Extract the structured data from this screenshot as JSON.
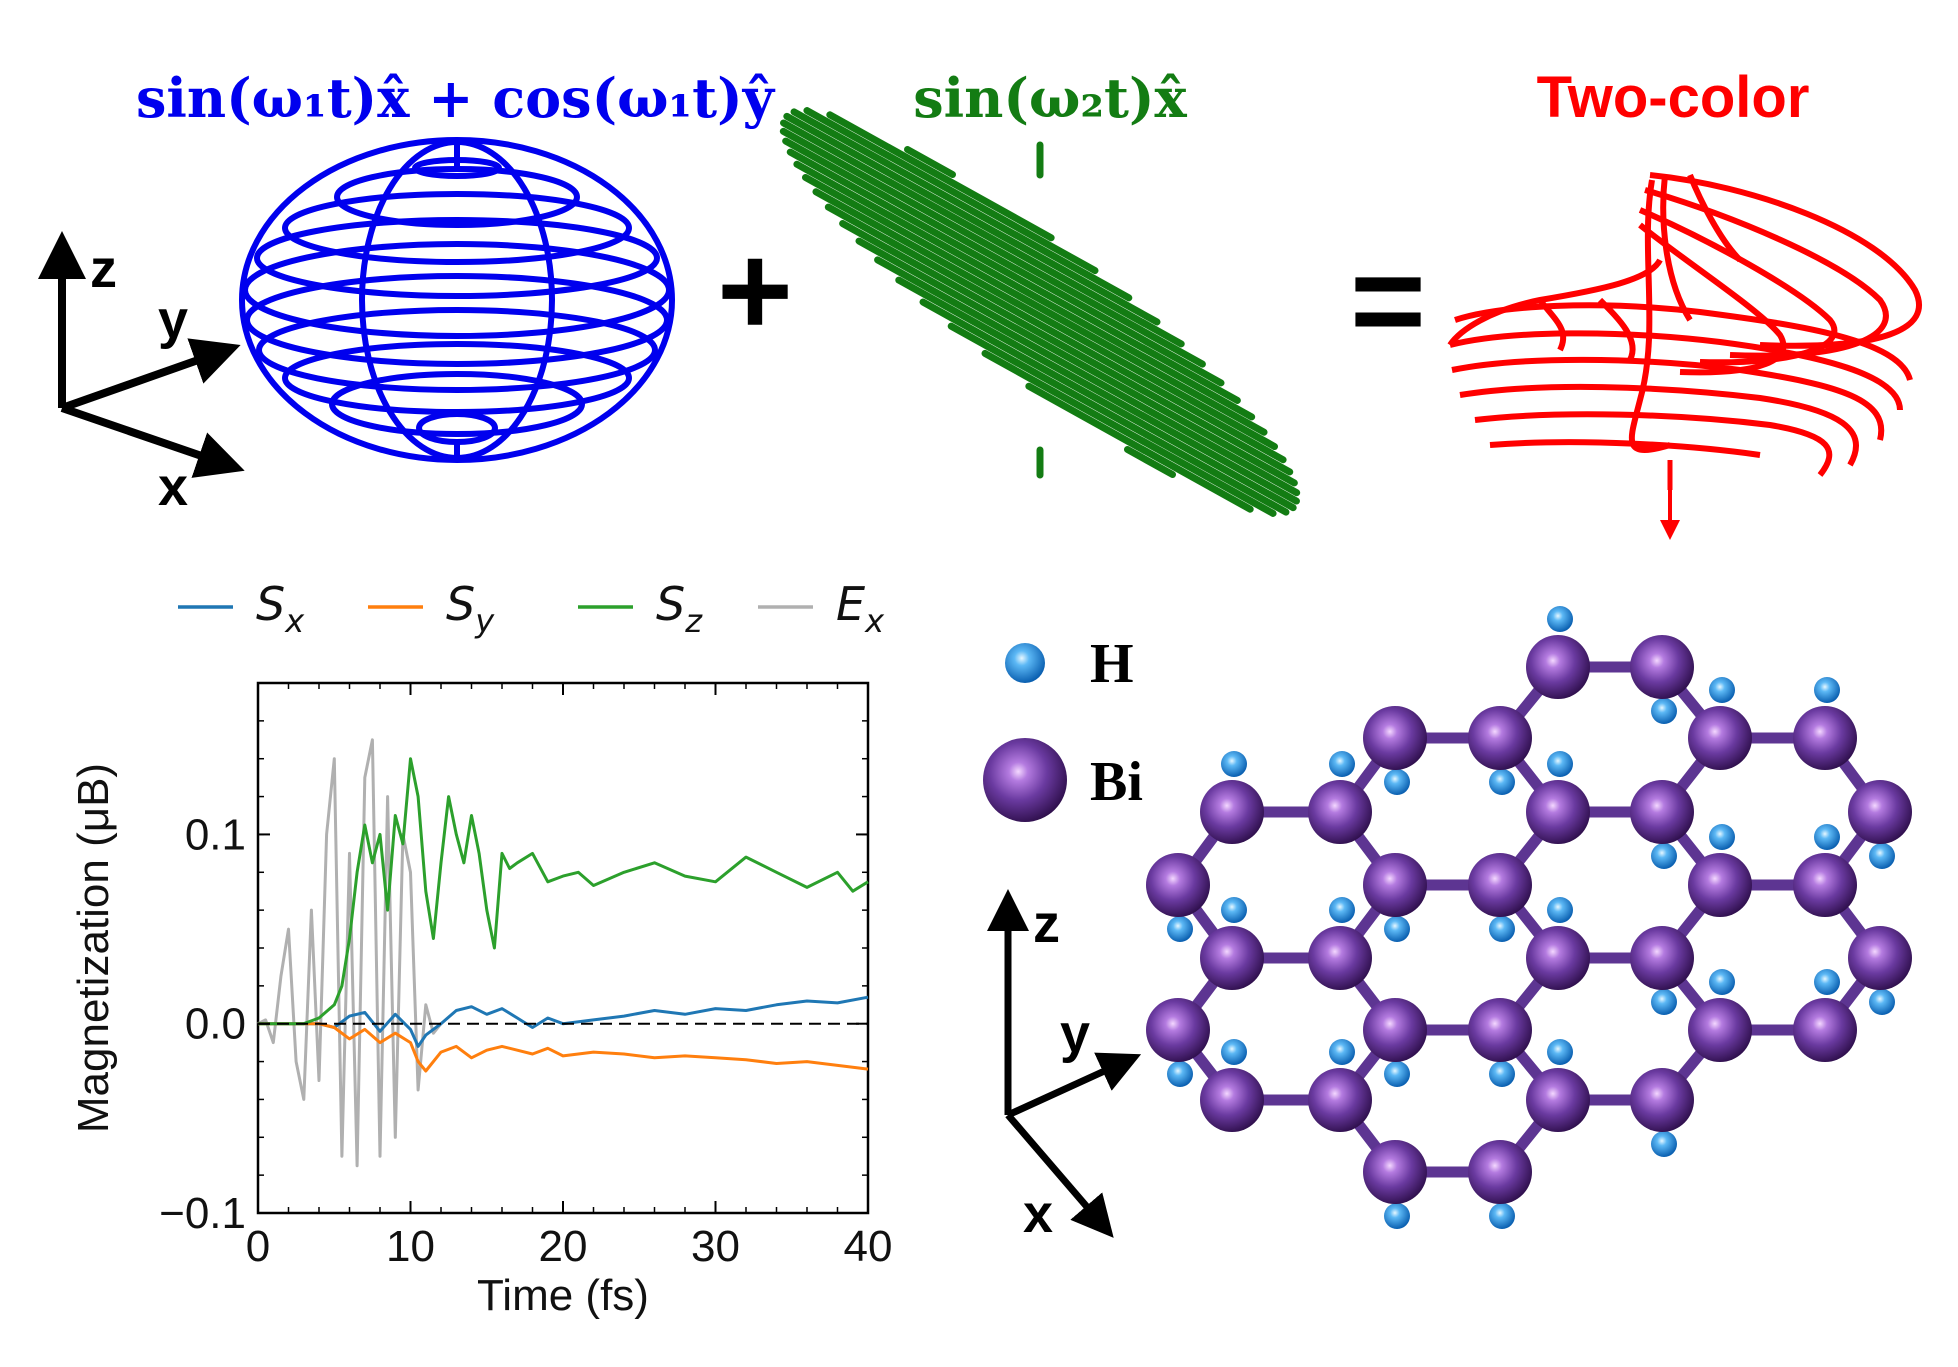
{
  "top_row": {
    "blue_label": "sin(ω₁t)x̂ + cos(ω₁t)ŷ",
    "green_label": "sin(ω₂t)x̂",
    "red_label": "Two-color",
    "plus_symbol": "+",
    "equals_symbol": "=",
    "axes": {
      "z": "z",
      "y": "y",
      "x": "x"
    }
  },
  "structure": {
    "legend": [
      {
        "label": "H",
        "color": "#2a8fe0"
      },
      {
        "label": "Bi",
        "color": "#5a2d8c"
      }
    ],
    "axes": {
      "z": "z",
      "y": "y",
      "x": "x"
    }
  },
  "colors": {
    "blue": "#0000ee",
    "green": "#137c13",
    "red": "#ff0000",
    "Sx": "#1f77b4",
    "Sy": "#ff7f0e",
    "Sz": "#2ca02c",
    "Ex": "#b0b0b0"
  },
  "chart_data": {
    "type": "line",
    "xlabel": "Time (fs)",
    "ylabel": "Magnetization (μB)",
    "xlim": [
      0,
      40
    ],
    "ylim": [
      -0.1,
      0.18
    ],
    "xticks": [
      "0",
      "10",
      "20",
      "30",
      "40"
    ],
    "yticks": [
      "−0.1",
      "0.0",
      "0.1"
    ],
    "legend_position": "top, outside",
    "zero_line": "dashed",
    "series": [
      {
        "name": "S_x",
        "color": "#1f77b4",
        "x": [
          0,
          2,
          4,
          5,
          6,
          7,
          8,
          9,
          10,
          10.5,
          11,
          12,
          13,
          14,
          15,
          16,
          17,
          18,
          19,
          20,
          22,
          24,
          26,
          28,
          30,
          32,
          34,
          36,
          38,
          40
        ],
        "y": [
          0,
          0,
          0,
          -0.002,
          0.004,
          0.006,
          -0.004,
          0.005,
          -0.003,
          -0.012,
          -0.006,
          0,
          0.007,
          0.009,
          0.005,
          0.008,
          0.003,
          -0.002,
          0.003,
          0,
          0.002,
          0.004,
          0.007,
          0.005,
          0.008,
          0.007,
          0.01,
          0.012,
          0.011,
          0.014
        ]
      },
      {
        "name": "S_y",
        "color": "#ff7f0e",
        "x": [
          0,
          2,
          4,
          5,
          6,
          7,
          8,
          9,
          10,
          10.5,
          11,
          12,
          13,
          14,
          15,
          16,
          17,
          18,
          19,
          20,
          22,
          24,
          26,
          28,
          30,
          32,
          34,
          36,
          38,
          40
        ],
        "y": [
          0,
          0,
          0,
          -0.002,
          -0.008,
          -0.003,
          -0.01,
          -0.005,
          -0.01,
          -0.02,
          -0.025,
          -0.015,
          -0.012,
          -0.018,
          -0.014,
          -0.012,
          -0.014,
          -0.016,
          -0.013,
          -0.017,
          -0.015,
          -0.016,
          -0.018,
          -0.017,
          -0.018,
          -0.019,
          -0.021,
          -0.02,
          -0.022,
          -0.024
        ]
      },
      {
        "name": "S_z",
        "color": "#2ca02c",
        "x": [
          0,
          3,
          4,
          5,
          5.5,
          6,
          6.5,
          7,
          7.5,
          8,
          8.5,
          9,
          9.5,
          10,
          10.5,
          11,
          11.5,
          12,
          12.5,
          13,
          13.5,
          14,
          14.5,
          15,
          15.5,
          16,
          16.5,
          17,
          18,
          19,
          20,
          21,
          22,
          24,
          26,
          28,
          30,
          32,
          34,
          36,
          38,
          39,
          40
        ],
        "y": [
          0,
          0,
          0.003,
          0.01,
          0.02,
          0.045,
          0.08,
          0.105,
          0.085,
          0.1,
          0.06,
          0.11,
          0.095,
          0.14,
          0.12,
          0.07,
          0.045,
          0.085,
          0.12,
          0.1,
          0.085,
          0.11,
          0.09,
          0.06,
          0.04,
          0.09,
          0.082,
          0.085,
          0.09,
          0.075,
          0.078,
          0.08,
          0.073,
          0.08,
          0.085,
          0.078,
          0.075,
          0.088,
          0.08,
          0.072,
          0.08,
          0.07,
          0.075
        ]
      },
      {
        "name": "E_x",
        "color": "#b0b0b0",
        "x": [
          0,
          0.5,
          1,
          1.5,
          2,
          2.5,
          3,
          3.5,
          4,
          4.5,
          5,
          5.5,
          6,
          6.5,
          7,
          7.5,
          8,
          8.5,
          9,
          9.5,
          10,
          10.5,
          11,
          11.5,
          12
        ],
        "y": [
          0,
          0.002,
          -0.01,
          0.025,
          0.05,
          -0.02,
          -0.04,
          0.06,
          -0.03,
          0.1,
          0.14,
          -0.07,
          0.09,
          -0.075,
          0.13,
          0.15,
          -0.07,
          0.12,
          -0.06,
          0.1,
          0.08,
          -0.035,
          0.01,
          -0.005,
          0
        ]
      }
    ]
  }
}
